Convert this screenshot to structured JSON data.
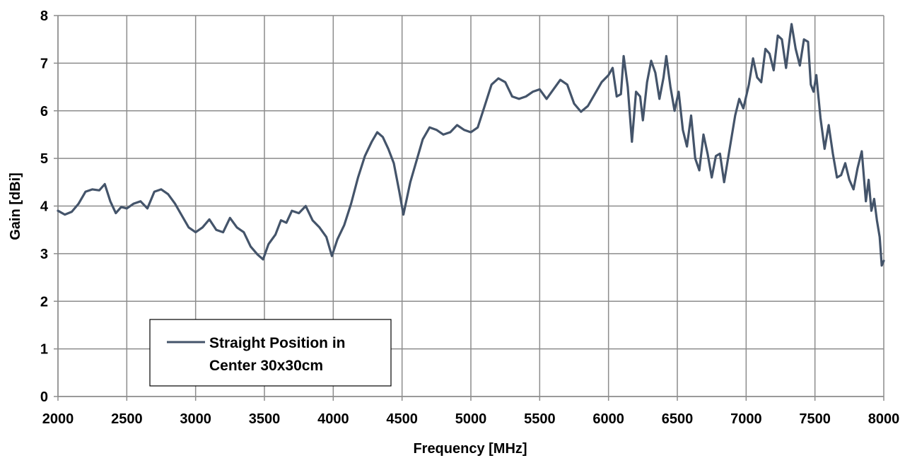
{
  "chart_data": {
    "type": "line",
    "title": "",
    "xlabel": "Frequency [MHz]",
    "ylabel": "Gain [dBi]",
    "xlim": [
      2000,
      8000
    ],
    "ylim": [
      0,
      8
    ],
    "x_ticks": [
      "2000",
      "2500",
      "3000",
      "3500",
      "4000",
      "4500",
      "5000",
      "5500",
      "6000",
      "6500",
      "7000",
      "7500",
      "8000"
    ],
    "y_ticks": [
      "0",
      "1",
      "2",
      "3",
      "4",
      "5",
      "6",
      "7",
      "8"
    ],
    "grid": true,
    "legend_position": "bottom-left",
    "legend_lines": [
      "Straight Position in",
      "Center 30x30cm"
    ],
    "series": [
      {
        "name": "Straight Position in Center 30x30cm",
        "color": "#44546a",
        "points": [
          [
            2000,
            3.9
          ],
          [
            2050,
            3.82
          ],
          [
            2100,
            3.88
          ],
          [
            2150,
            4.05
          ],
          [
            2200,
            4.3
          ],
          [
            2250,
            4.35
          ],
          [
            2300,
            4.33
          ],
          [
            2340,
            4.46
          ],
          [
            2380,
            4.1
          ],
          [
            2420,
            3.85
          ],
          [
            2460,
            3.98
          ],
          [
            2500,
            3.95
          ],
          [
            2550,
            4.05
          ],
          [
            2600,
            4.1
          ],
          [
            2650,
            3.95
          ],
          [
            2700,
            4.3
          ],
          [
            2750,
            4.35
          ],
          [
            2800,
            4.25
          ],
          [
            2850,
            4.05
          ],
          [
            2900,
            3.8
          ],
          [
            2950,
            3.55
          ],
          [
            3000,
            3.45
          ],
          [
            3050,
            3.55
          ],
          [
            3100,
            3.72
          ],
          [
            3150,
            3.5
          ],
          [
            3200,
            3.45
          ],
          [
            3250,
            3.75
          ],
          [
            3300,
            3.55
          ],
          [
            3350,
            3.45
          ],
          [
            3400,
            3.15
          ],
          [
            3450,
            2.98
          ],
          [
            3490,
            2.88
          ],
          [
            3530,
            3.2
          ],
          [
            3580,
            3.4
          ],
          [
            3620,
            3.7
          ],
          [
            3660,
            3.65
          ],
          [
            3700,
            3.9
          ],
          [
            3750,
            3.85
          ],
          [
            3800,
            4.0
          ],
          [
            3850,
            3.7
          ],
          [
            3900,
            3.55
          ],
          [
            3950,
            3.35
          ],
          [
            3990,
            2.95
          ],
          [
            4030,
            3.3
          ],
          [
            4080,
            3.6
          ],
          [
            4130,
            4.05
          ],
          [
            4180,
            4.6
          ],
          [
            4230,
            5.05
          ],
          [
            4280,
            5.35
          ],
          [
            4320,
            5.55
          ],
          [
            4360,
            5.45
          ],
          [
            4400,
            5.2
          ],
          [
            4440,
            4.9
          ],
          [
            4480,
            4.3
          ],
          [
            4510,
            3.82
          ],
          [
            4560,
            4.5
          ],
          [
            4600,
            4.9
          ],
          [
            4650,
            5.4
          ],
          [
            4700,
            5.65
          ],
          [
            4750,
            5.6
          ],
          [
            4800,
            5.5
          ],
          [
            4850,
            5.55
          ],
          [
            4900,
            5.7
          ],
          [
            4950,
            5.6
          ],
          [
            5000,
            5.55
          ],
          [
            5050,
            5.65
          ],
          [
            5100,
            6.1
          ],
          [
            5150,
            6.55
          ],
          [
            5200,
            6.68
          ],
          [
            5250,
            6.6
          ],
          [
            5300,
            6.3
          ],
          [
            5350,
            6.25
          ],
          [
            5400,
            6.3
          ],
          [
            5450,
            6.4
          ],
          [
            5500,
            6.45
          ],
          [
            5550,
            6.25
          ],
          [
            5600,
            6.45
          ],
          [
            5650,
            6.65
          ],
          [
            5700,
            6.55
          ],
          [
            5750,
            6.15
          ],
          [
            5800,
            5.98
          ],
          [
            5850,
            6.1
          ],
          [
            5900,
            6.35
          ],
          [
            5950,
            6.6
          ],
          [
            6000,
            6.75
          ],
          [
            6030,
            6.9
          ],
          [
            6060,
            6.3
          ],
          [
            6090,
            6.35
          ],
          [
            6110,
            7.15
          ],
          [
            6140,
            6.5
          ],
          [
            6170,
            5.35
          ],
          [
            6200,
            6.4
          ],
          [
            6230,
            6.3
          ],
          [
            6250,
            5.8
          ],
          [
            6280,
            6.6
          ],
          [
            6310,
            7.05
          ],
          [
            6340,
            6.8
          ],
          [
            6370,
            6.25
          ],
          [
            6400,
            6.7
          ],
          [
            6420,
            7.15
          ],
          [
            6450,
            6.5
          ],
          [
            6480,
            6.0
          ],
          [
            6510,
            6.4
          ],
          [
            6540,
            5.6
          ],
          [
            6570,
            5.25
          ],
          [
            6600,
            5.9
          ],
          [
            6630,
            5.0
          ],
          [
            6660,
            4.75
          ],
          [
            6690,
            5.5
          ],
          [
            6720,
            5.1
          ],
          [
            6750,
            4.6
          ],
          [
            6780,
            5.05
          ],
          [
            6810,
            5.1
          ],
          [
            6840,
            4.5
          ],
          [
            6880,
            5.2
          ],
          [
            6920,
            5.9
          ],
          [
            6950,
            6.25
          ],
          [
            6980,
            6.05
          ],
          [
            7020,
            6.55
          ],
          [
            7050,
            7.1
          ],
          [
            7080,
            6.7
          ],
          [
            7110,
            6.6
          ],
          [
            7140,
            7.3
          ],
          [
            7170,
            7.2
          ],
          [
            7200,
            6.85
          ],
          [
            7230,
            7.58
          ],
          [
            7260,
            7.5
          ],
          [
            7290,
            6.9
          ],
          [
            7320,
            7.6
          ],
          [
            7330,
            7.82
          ],
          [
            7360,
            7.3
          ],
          [
            7390,
            6.95
          ],
          [
            7420,
            7.5
          ],
          [
            7450,
            7.45
          ],
          [
            7470,
            6.55
          ],
          [
            7490,
            6.4
          ],
          [
            7510,
            6.75
          ],
          [
            7540,
            5.85
          ],
          [
            7570,
            5.2
          ],
          [
            7600,
            5.7
          ],
          [
            7630,
            5.1
          ],
          [
            7660,
            4.6
          ],
          [
            7690,
            4.65
          ],
          [
            7720,
            4.9
          ],
          [
            7750,
            4.55
          ],
          [
            7780,
            4.35
          ],
          [
            7810,
            4.8
          ],
          [
            7840,
            5.15
          ],
          [
            7870,
            4.1
          ],
          [
            7890,
            4.55
          ],
          [
            7910,
            3.9
          ],
          [
            7930,
            4.15
          ],
          [
            7950,
            3.7
          ],
          [
            7970,
            3.35
          ],
          [
            7985,
            2.75
          ],
          [
            8000,
            2.85
          ]
        ]
      }
    ]
  }
}
